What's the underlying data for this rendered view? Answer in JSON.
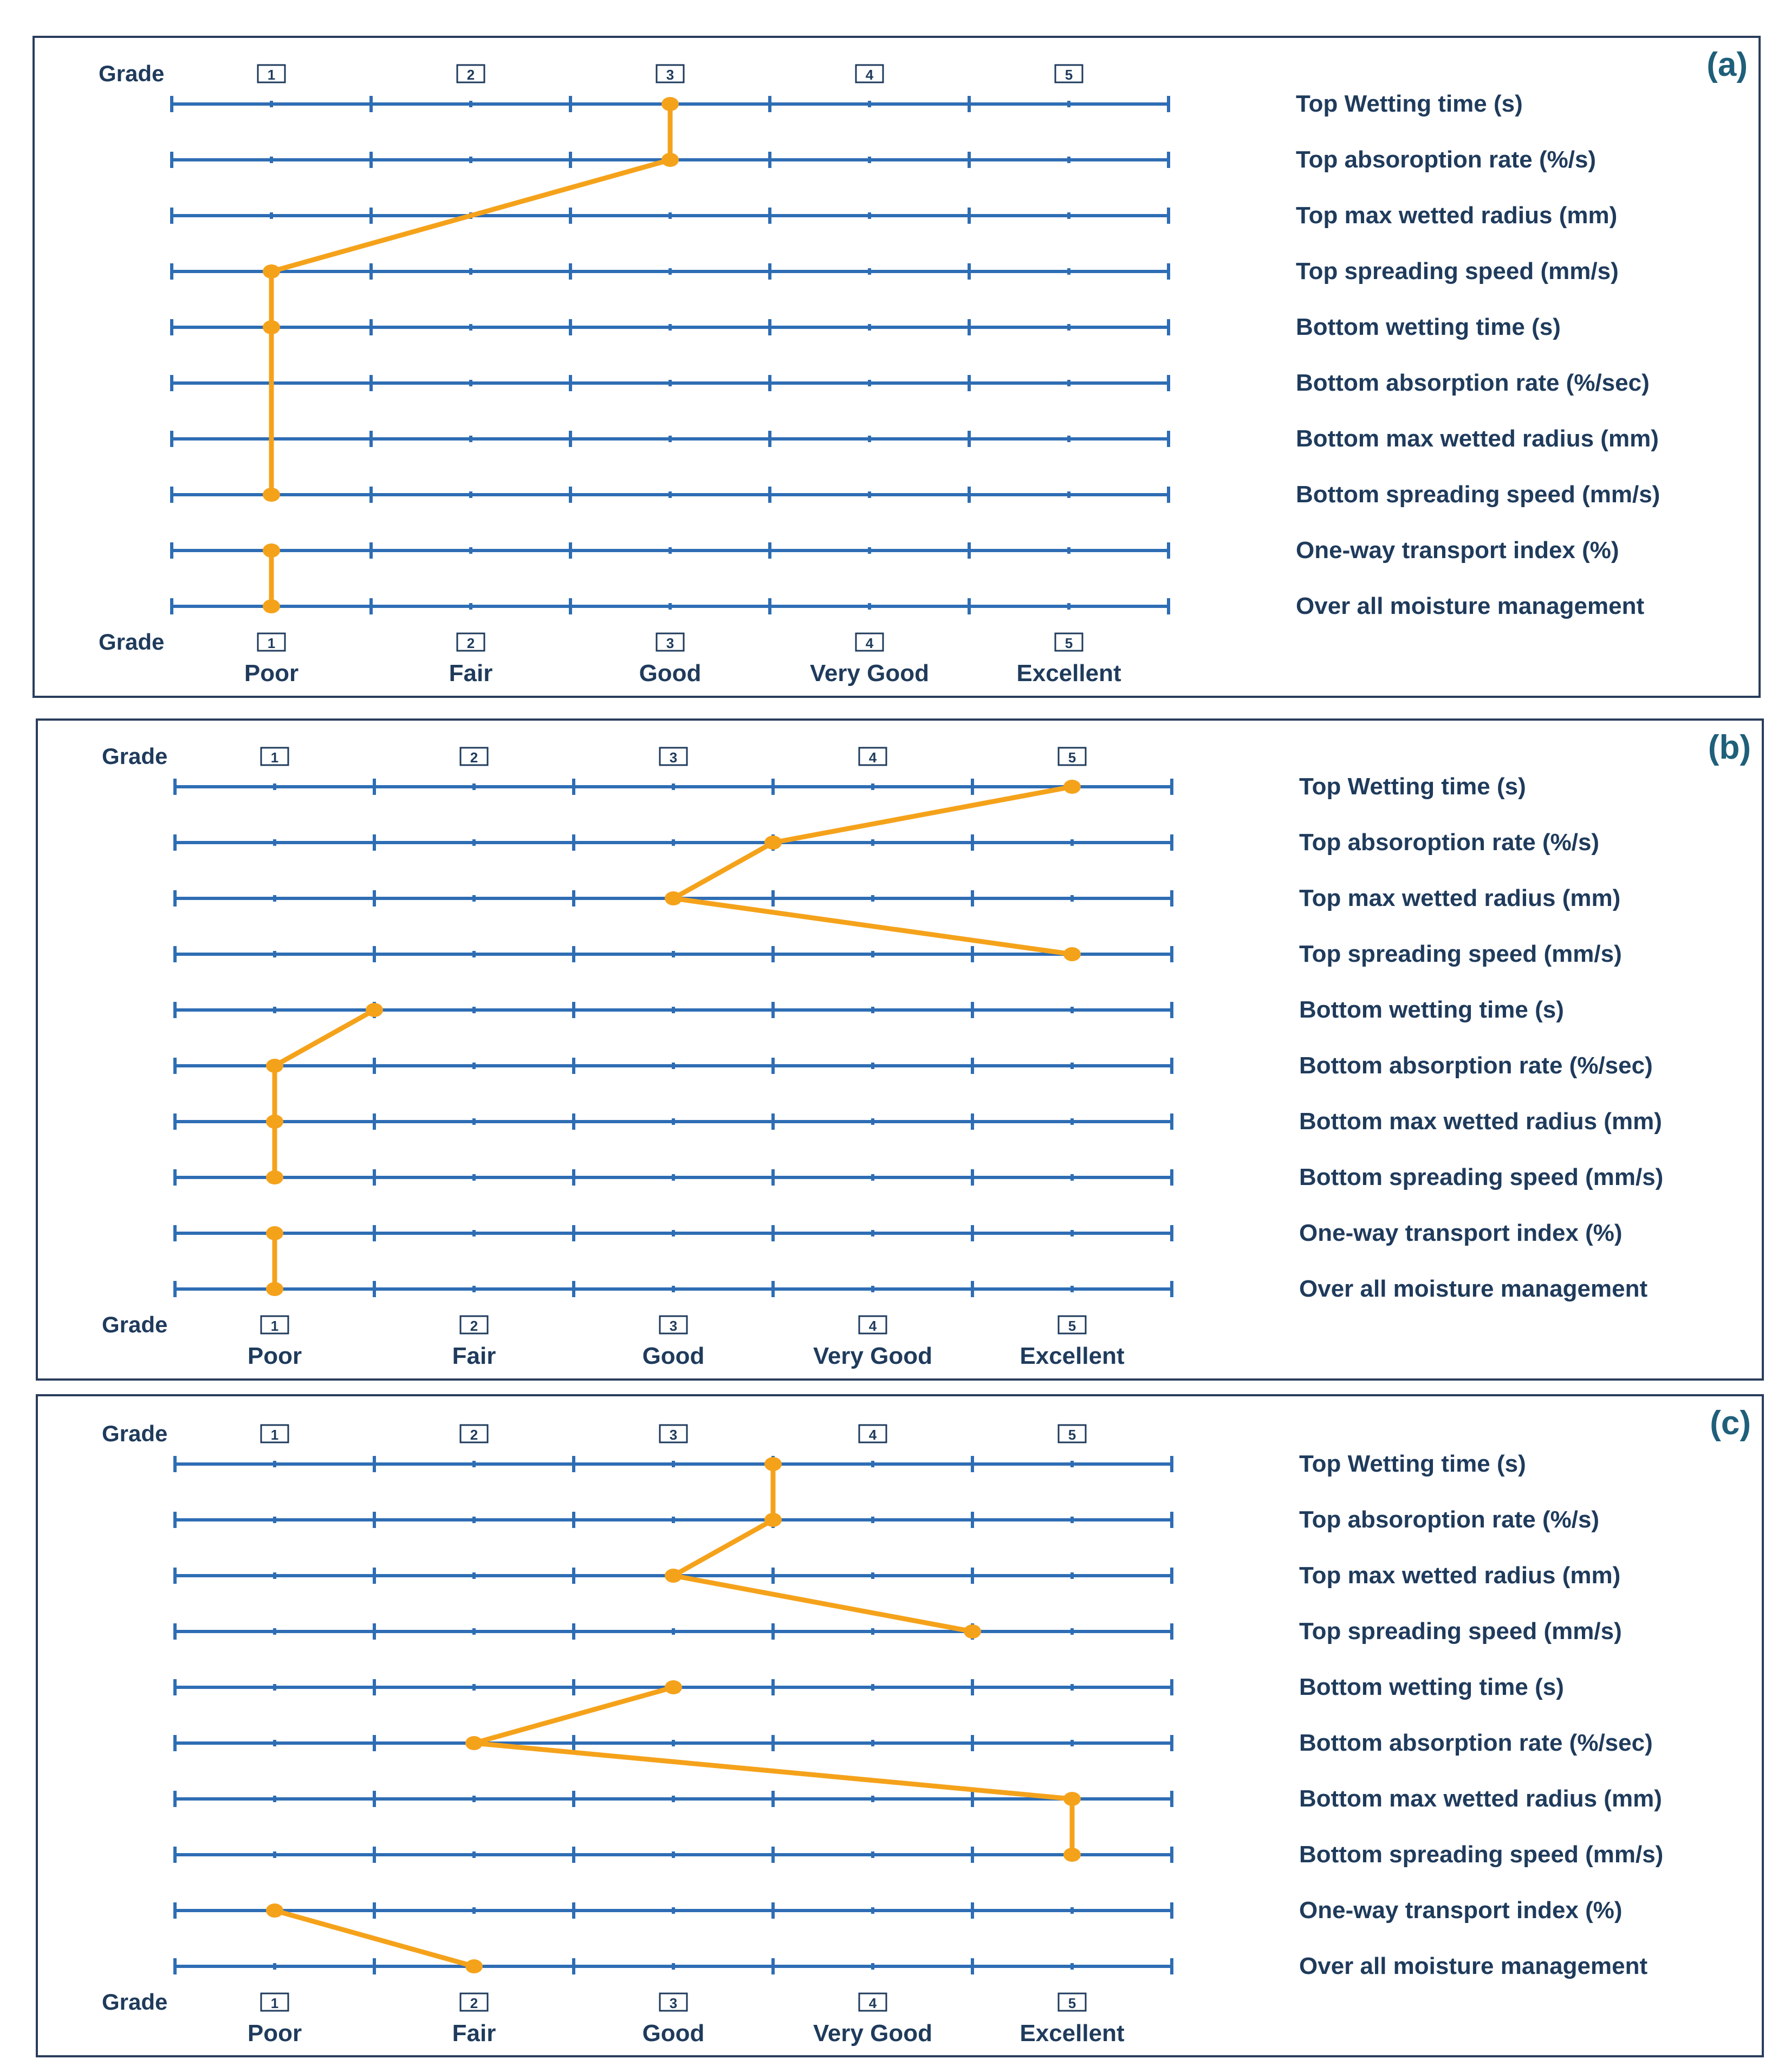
{
  "colors": {
    "axis": "#2E6DB4",
    "marker": "#F5A21B",
    "text": "#1F3B5C",
    "panel_label": "#1F5F7A",
    "frame": "#2A3D5C"
  },
  "chart_data": [
    {
      "type": "line",
      "panel_label": "(a)",
      "grade_label": "Grade",
      "grades": [
        "1",
        "2",
        "3",
        "4",
        "5"
      ],
      "grade_names": [
        "Poor",
        "Fair",
        "Good",
        "Very Good",
        "Excellent"
      ],
      "xlim": [
        0.5,
        5.5
      ],
      "properties": [
        "Top Wetting time (s)",
        "Top absoroption rate (%/s)",
        "Top max wetted radius (mm)",
        "Top spreading speed (mm/s)",
        "Bottom wetting time (s)",
        "Bottom absorption rate (%/sec)",
        "Bottom max wetted radius (mm)",
        "Bottom spreading speed (mm/s)",
        "One-way transport index (%)",
        "Over all moisture management"
      ],
      "values": [
        3,
        3,
        null,
        1,
        1,
        null,
        null,
        1,
        1,
        1
      ],
      "breaks_after": [
        7
      ]
    },
    {
      "type": "line",
      "panel_label": "(b)",
      "grade_label": "Grade",
      "grades": [
        "1",
        "2",
        "3",
        "4",
        "5"
      ],
      "grade_names": [
        "Poor",
        "Fair",
        "Good",
        "Very Good",
        "Excellent"
      ],
      "xlim": [
        0.5,
        5.5
      ],
      "properties": [
        "Top Wetting time (s)",
        "Top absoroption rate (%/s)",
        "Top max wetted radius (mm)",
        "Top spreading speed (mm/s)",
        "Bottom wetting time (s)",
        "Bottom absorption rate (%/sec)",
        "Bottom max wetted radius (mm)",
        "Bottom spreading speed (mm/s)",
        "One-way transport index (%)",
        "Over all moisture management"
      ],
      "values": [
        5,
        3.5,
        3,
        5,
        1.5,
        1,
        1,
        1,
        1,
        1
      ],
      "breaks_after": [
        3,
        7
      ]
    },
    {
      "type": "line",
      "panel_label": "(c)",
      "grade_label": "Grade",
      "grades": [
        "1",
        "2",
        "3",
        "4",
        "5"
      ],
      "grade_names": [
        "Poor",
        "Fair",
        "Good",
        "Very Good",
        "Excellent"
      ],
      "xlim": [
        0.5,
        5.5
      ],
      "properties": [
        "Top Wetting time (s)",
        "Top absoroption rate (%/s)",
        "Top max wetted radius (mm)",
        "Top spreading speed (mm/s)",
        "Bottom wetting time (s)",
        "Bottom absorption rate (%/sec)",
        "Bottom max wetted radius (mm)",
        "Bottom spreading speed (mm/s)",
        "One-way transport index (%)",
        "Over all moisture management"
      ],
      "values": [
        3.5,
        3.5,
        3,
        4.5,
        3,
        2,
        5,
        5,
        1,
        2
      ],
      "breaks_after": [
        3,
        7
      ]
    }
  ]
}
